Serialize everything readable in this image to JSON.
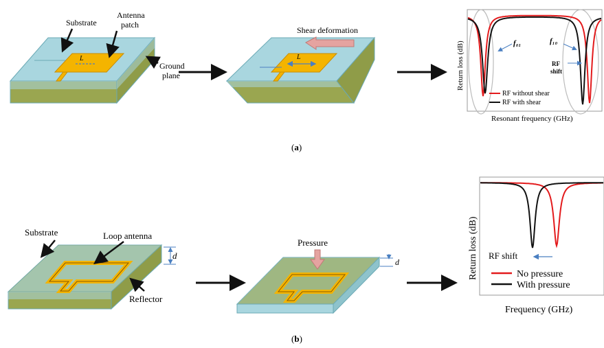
{
  "panel_a": {
    "labels": {
      "substrate": "Substrate",
      "antenna_line1": "Antenna",
      "antenna_line2": "patch",
      "ground_line1": "Ground",
      "ground_line2": "plane",
      "length_symbol": "L",
      "shear": "Shear deformation"
    },
    "chart": {
      "ylabel": "Return loss (dB)",
      "xlabel": "Resonant frequency (GHz)",
      "f01": "f₀₁",
      "f10": "f₁₀",
      "rf_line1": "RF",
      "rf_line2": "shift",
      "legend": [
        "RF without shear",
        "RF with shear"
      ]
    },
    "caption_open": "(",
    "caption_letter": "a",
    "caption_close": ")"
  },
  "panel_b": {
    "labels": {
      "substrate": "Substrate",
      "loop": "Loop antenna",
      "d": "d",
      "reflector": "Reflector",
      "pressure": "Pressure",
      "d2": "d"
    },
    "chart": {
      "ylabel": "Return loss (dB)",
      "xlabel": "Frequency (GHz)",
      "rf_shift": "RF shift",
      "legend": [
        "No pressure",
        "With pressure"
      ]
    },
    "caption_open": "(",
    "caption_letter": "b",
    "caption_close": ")"
  },
  "colors": {
    "substrate_top": "#a9d6df",
    "substrate_side": "#8ec3cc",
    "ground": "#9aa650",
    "patch": "#f4b400",
    "red": "#e31a1c",
    "black": "#111111",
    "arrow_blue": "#4a7fc1",
    "pink_arrow": "#e5a3a0"
  }
}
